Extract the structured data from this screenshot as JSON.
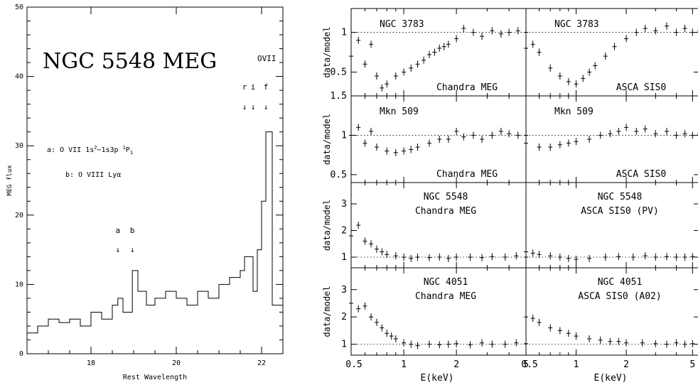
{
  "chart_data": [
    {
      "type": "line",
      "panel": "left",
      "title": "NGC 5548 MEG",
      "xlabel": "Rest Wavelength",
      "ylabel": "MEG flux",
      "xlim": [
        16.5,
        22.5
      ],
      "ylim": [
        0,
        50
      ],
      "xticks": [
        "18",
        "20",
        "22"
      ],
      "yticks": [
        "0",
        "10",
        "20",
        "30",
        "40",
        "50"
      ],
      "annotations": {
        "ion": "OVII",
        "triplet": [
          "r",
          "i",
          "f"
        ],
        "markers": [
          "a",
          "b"
        ],
        "line_a": "a: O VII 1s",
        "line_a_sup1": "2",
        "line_a_mid": "−1s3p ",
        "line_a_sup2": "1",
        "line_a_end": "P",
        "line_a_sub": "1",
        "line_b": "b: O VIII Lyα"
      },
      "arrow_wavelengths": {
        "a": 18.63,
        "b": 18.97,
        "r": 21.6,
        "i": 21.8,
        "f": 22.1
      },
      "x": [
        16.5,
        16.75,
        17.0,
        17.25,
        17.5,
        17.75,
        18.0,
        18.25,
        18.5,
        18.63,
        18.75,
        18.97,
        19.1,
        19.3,
        19.5,
        19.75,
        20.0,
        20.25,
        20.5,
        20.75,
        21.0,
        21.25,
        21.5,
        21.6,
        21.8,
        21.9,
        22.0,
        22.1,
        22.25,
        22.5
      ],
      "y": [
        3,
        4,
        5,
        4.5,
        5,
        4,
        6,
        5,
        7,
        8,
        6,
        12,
        9,
        7,
        8,
        9,
        8,
        7,
        9,
        8,
        10,
        11,
        12,
        14,
        9,
        15,
        22,
        32,
        7,
        5
      ]
    },
    {
      "type": "scatter",
      "panel": "grid",
      "ylabel": "data/model",
      "xlabel": "E(keV)",
      "x_scale": "log",
      "xlim_left": [
        0.5,
        5
      ],
      "xlim_right": [
        0.5,
        5.5
      ],
      "xticks_left": [
        "0.5",
        "1",
        "2",
        "5"
      ],
      "xticks_right": [
        "0.5",
        "1",
        "2",
        "5"
      ],
      "rows": [
        {
          "name": "NGC 3783",
          "ylim": [
            0.2,
            1.3
          ],
          "yticks": [
            "0.5",
            "1"
          ],
          "top_tick": "1.5",
          "left_label": "Chandra MEG",
          "right_label": "ASCA SIS0",
          "left_x": [
            0.5,
            0.55,
            0.6,
            0.65,
            0.7,
            0.75,
            0.8,
            0.9,
            1.0,
            1.1,
            1.2,
            1.3,
            1.4,
            1.5,
            1.6,
            1.7,
            1.8,
            2.0,
            2.2,
            2.5,
            2.8,
            3.2,
            3.6,
            4.0,
            4.5,
            5.0
          ],
          "left_y": [
            0.7,
            0.9,
            0.6,
            0.85,
            0.45,
            0.3,
            0.35,
            0.45,
            0.5,
            0.55,
            0.6,
            0.65,
            0.72,
            0.75,
            0.8,
            0.82,
            0.85,
            0.92,
            1.05,
            1.0,
            0.95,
            1.02,
            0.98,
            1.0,
            1.02,
            1.0
          ],
          "right_x": [
            0.5,
            0.55,
            0.6,
            0.7,
            0.8,
            0.9,
            1.0,
            1.1,
            1.2,
            1.3,
            1.5,
            1.7,
            2.0,
            2.3,
            2.6,
            3.0,
            3.5,
            4.0,
            4.5,
            5.0,
            5.5
          ],
          "right_y": [
            0.8,
            0.85,
            0.75,
            0.55,
            0.45,
            0.38,
            0.35,
            0.42,
            0.5,
            0.58,
            0.7,
            0.82,
            0.92,
            1.0,
            1.05,
            1.02,
            1.08,
            1.0,
            1.05,
            1.0,
            1.02
          ]
        },
        {
          "name": "Mkn 509",
          "ylim": [
            0.4,
            1.5
          ],
          "yticks": [
            "0.5",
            "1"
          ],
          "top_tick": "",
          "left_label": "Chandra MEG",
          "right_label": "ASCA SIS0",
          "left_x": [
            0.5,
            0.55,
            0.6,
            0.65,
            0.7,
            0.8,
            0.9,
            1.0,
            1.1,
            1.2,
            1.4,
            1.6,
            1.8,
            2.0,
            2.2,
            2.5,
            2.8,
            3.2,
            3.6,
            4.0,
            4.5,
            5.0
          ],
          "left_y": [
            1.0,
            1.1,
            0.9,
            1.05,
            0.85,
            0.8,
            0.78,
            0.8,
            0.82,
            0.85,
            0.9,
            0.95,
            0.95,
            1.05,
            0.98,
            1.0,
            0.95,
            1.0,
            1.05,
            1.02,
            1.0,
            1.0
          ],
          "right_x": [
            0.5,
            0.6,
            0.7,
            0.8,
            0.9,
            1.0,
            1.2,
            1.4,
            1.6,
            1.8,
            2.0,
            2.3,
            2.6,
            3.0,
            3.5,
            4.0,
            4.5,
            5.0,
            5.5
          ],
          "right_y": [
            0.9,
            0.85,
            0.85,
            0.88,
            0.9,
            0.92,
            0.95,
            1.0,
            1.02,
            1.05,
            1.1,
            1.05,
            1.08,
            1.02,
            1.05,
            1.0,
            1.02,
            1.0,
            1.02
          ]
        },
        {
          "name": "NGC 5548",
          "ylim": [
            0.6,
            3.8
          ],
          "yticks": [
            "1",
            "2",
            "3"
          ],
          "top_tick": "",
          "left_label": "Chandra MEG",
          "right_label": "ASCA SIS0 (PV)",
          "left_x": [
            0.5,
            0.55,
            0.6,
            0.65,
            0.7,
            0.75,
            0.8,
            0.9,
            1.0,
            1.1,
            1.2,
            1.4,
            1.6,
            1.8,
            2.0,
            2.4,
            2.8,
            3.2,
            3.8,
            4.4,
            5.0
          ],
          "left_y": [
            1.8,
            2.2,
            1.6,
            1.5,
            1.3,
            1.2,
            1.1,
            1.05,
            1.0,
            0.95,
            1.0,
            0.98,
            1.0,
            0.95,
            1.0,
            1.0,
            0.98,
            1.02,
            1.0,
            1.05,
            1.0
          ],
          "right_x": [
            0.5,
            0.55,
            0.6,
            0.7,
            0.8,
            0.9,
            1.0,
            1.2,
            1.5,
            1.8,
            2.2,
            2.6,
            3.0,
            3.5,
            4.0,
            4.5,
            5.0,
            5.5
          ],
          "right_y": [
            1.2,
            1.15,
            1.1,
            1.05,
            1.0,
            0.95,
            0.92,
            0.95,
            1.0,
            1.02,
            1.0,
            1.05,
            1.0,
            1.02,
            1.0,
            1.0,
            1.02,
            1.0
          ]
        },
        {
          "name": "NGC 4051",
          "ylim": [
            0.6,
            3.8
          ],
          "yticks": [
            "1",
            "2",
            "3"
          ],
          "top_tick": "",
          "left_label": "Chandra MEG",
          "right_label": "ASCA SIS0 (A02)",
          "left_x": [
            0.5,
            0.55,
            0.6,
            0.65,
            0.7,
            0.75,
            0.8,
            0.85,
            0.9,
            1.0,
            1.1,
            1.2,
            1.4,
            1.6,
            1.8,
            2.0,
            2.4,
            2.8,
            3.2,
            3.8,
            4.4,
            5.0
          ],
          "left_y": [
            2.5,
            2.3,
            2.4,
            2.0,
            1.8,
            1.6,
            1.4,
            1.3,
            1.2,
            1.05,
            1.0,
            0.95,
            1.0,
            0.98,
            1.0,
            1.02,
            0.98,
            1.05,
            1.0,
            1.0,
            1.05,
            1.02
          ],
          "right_x": [
            0.5,
            0.55,
            0.6,
            0.7,
            0.8,
            0.9,
            1.0,
            1.2,
            1.4,
            1.6,
            1.8,
            2.0,
            2.5,
            3.0,
            3.5,
            4.0,
            4.5,
            5.0,
            5.5
          ],
          "right_y": [
            2.0,
            1.95,
            1.8,
            1.6,
            1.5,
            1.4,
            1.3,
            1.2,
            1.15,
            1.1,
            1.1,
            1.05,
            1.05,
            1.02,
            1.0,
            1.05,
            1.0,
            1.02,
            1.0
          ]
        }
      ]
    }
  ]
}
